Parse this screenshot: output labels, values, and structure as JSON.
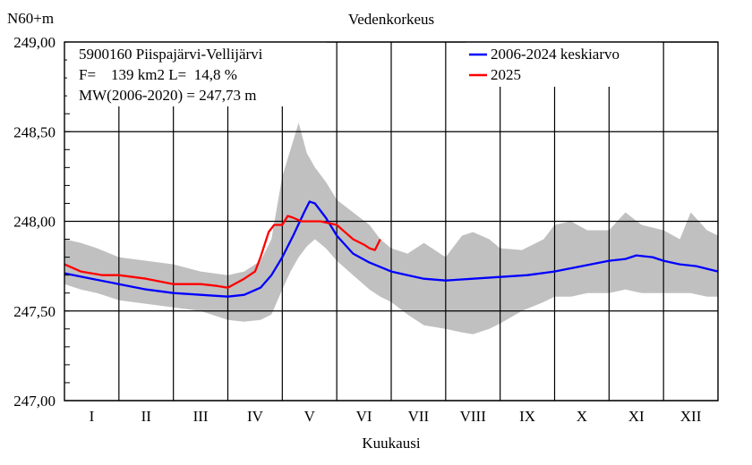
{
  "chart_data": {
    "type": "line",
    "title": "Vedenkorkeus",
    "ylabel": "N60+m",
    "xlabel": "Kuukausi",
    "ylim": [
      247.0,
      249.0
    ],
    "y_ticks": [
      "247,00",
      "247,50",
      "248,00",
      "248,50",
      "249,00"
    ],
    "y_tick_values": [
      247.0,
      247.5,
      248.0,
      248.5,
      249.0
    ],
    "x_range": [
      0,
      12
    ],
    "months": [
      "I",
      "II",
      "III",
      "IV",
      "V",
      "VI",
      "VII",
      "VIII",
      "IX",
      "X",
      "XI",
      "XII"
    ],
    "info": {
      "station": "5900160 Piispajärvi-Vellijärvi",
      "area": "F=    139 km2 L=  14,8 %",
      "mean": "MW(2006-2020) = 247,73 m"
    },
    "legend_position": "top-right",
    "colors": {
      "band": "#c0c0c0",
      "mean": "#0000ff",
      "current": "#ff0000",
      "grid": "#000000"
    },
    "band": {
      "name": "",
      "x": [
        0,
        0.3,
        0.6,
        1,
        1.5,
        2,
        2.5,
        3,
        3.3,
        3.6,
        3.8,
        4.0,
        4.15,
        4.3,
        4.45,
        4.6,
        4.8,
        5,
        5.3,
        5.6,
        5.8,
        6,
        6.3,
        6.6,
        7,
        7.3,
        7.5,
        7.8,
        8,
        8.4,
        8.8,
        9,
        9.3,
        9.6,
        10,
        10.3,
        10.6,
        11,
        11.3,
        11.5,
        11.8,
        12
      ],
      "upper": [
        247.9,
        247.88,
        247.85,
        247.8,
        247.78,
        247.76,
        247.72,
        247.7,
        247.72,
        247.78,
        247.9,
        248.25,
        248.4,
        248.55,
        248.38,
        248.3,
        248.22,
        248.12,
        248.05,
        247.98,
        247.9,
        247.85,
        247.82,
        247.88,
        247.8,
        247.92,
        247.94,
        247.9,
        247.85,
        247.84,
        247.9,
        247.98,
        248.0,
        247.95,
        247.95,
        248.05,
        247.98,
        247.95,
        247.9,
        248.05,
        247.95,
        247.92
      ],
      "lower": [
        247.65,
        247.62,
        247.6,
        247.56,
        247.54,
        247.52,
        247.5,
        247.45,
        247.44,
        247.45,
        247.48,
        247.62,
        247.72,
        247.8,
        247.86,
        247.9,
        247.85,
        247.78,
        247.7,
        247.62,
        247.58,
        247.55,
        247.48,
        247.42,
        247.4,
        247.38,
        247.37,
        247.4,
        247.43,
        247.5,
        247.55,
        247.58,
        247.58,
        247.6,
        247.6,
        247.62,
        247.6,
        247.6,
        247.6,
        247.6,
        247.58,
        247.58
      ]
    },
    "series": [
      {
        "name": "2006-2024 keskiarvo",
        "color": "#0000ff",
        "x": [
          0,
          0.5,
          1,
          1.5,
          2,
          2.5,
          3,
          3.3,
          3.6,
          3.8,
          4.0,
          4.2,
          4.4,
          4.5,
          4.6,
          4.8,
          5.0,
          5.3,
          5.6,
          6,
          6.3,
          6.6,
          7,
          7.5,
          8,
          8.5,
          9,
          9.5,
          10,
          10.3,
          10.5,
          10.8,
          11,
          11.3,
          11.6,
          12
        ],
        "values": [
          247.71,
          247.68,
          247.65,
          247.62,
          247.6,
          247.59,
          247.58,
          247.59,
          247.63,
          247.7,
          247.8,
          247.92,
          248.05,
          248.11,
          248.1,
          248.02,
          247.92,
          247.82,
          247.77,
          247.72,
          247.7,
          247.68,
          247.67,
          247.68,
          247.69,
          247.7,
          247.72,
          247.75,
          247.78,
          247.79,
          247.81,
          247.8,
          247.78,
          247.76,
          247.75,
          247.72
        ]
      },
      {
        "name": "2025",
        "color": "#ff0000",
        "x": [
          0,
          0.3,
          0.7,
          1,
          1.5,
          2,
          2.5,
          2.8,
          3.0,
          3.3,
          3.5,
          3.6,
          3.75,
          3.85,
          4.0,
          4.1,
          4.2,
          4.35,
          4.5,
          4.7,
          5,
          5.3,
          5.5,
          5.6,
          5.7,
          5.8
        ],
        "values": [
          247.76,
          247.72,
          247.7,
          247.7,
          247.68,
          247.65,
          247.65,
          247.64,
          247.63,
          247.68,
          247.72,
          247.8,
          247.94,
          247.98,
          247.98,
          248.03,
          248.02,
          248.0,
          248.0,
          248.0,
          247.98,
          247.9,
          247.87,
          247.85,
          247.84,
          247.9
        ]
      }
    ]
  }
}
